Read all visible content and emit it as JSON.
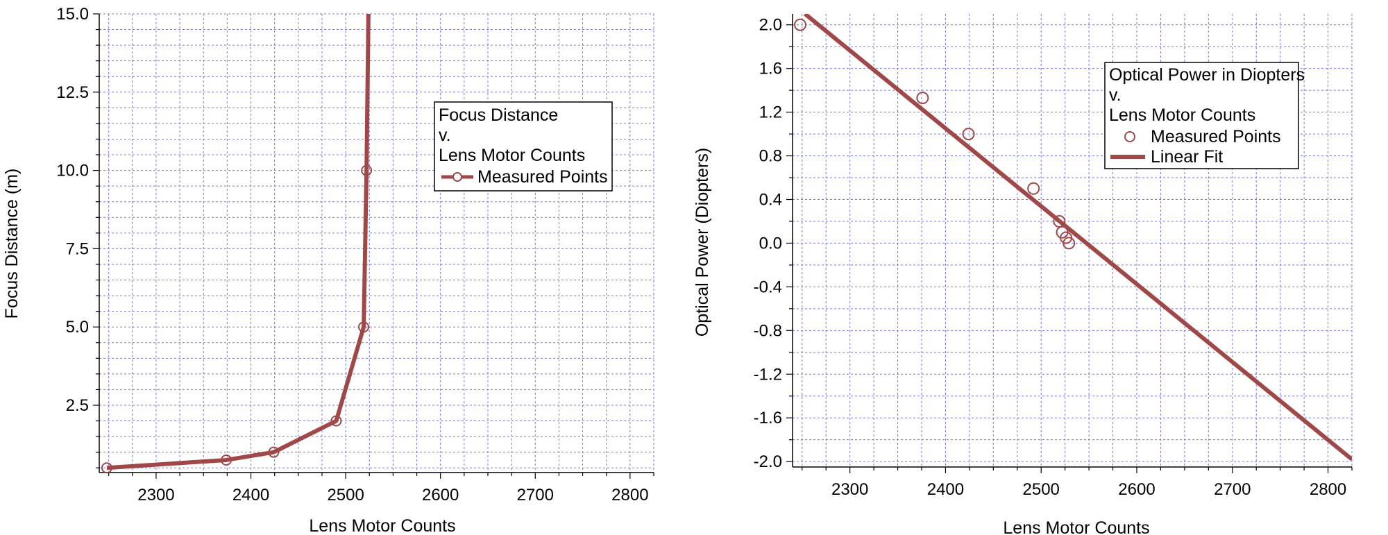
{
  "colors": {
    "series": "#A04848",
    "grid": "#7878D8",
    "axis": "#000000"
  },
  "chart_data": [
    {
      "type": "line",
      "xlabel": "Lens Motor Counts",
      "ylabel": "Focus Distance (m)",
      "xlim": [
        2240,
        2825
      ],
      "ylim": [
        0.35,
        15.0
      ],
      "xticks": [
        2300,
        2400,
        2500,
        2600,
        2700,
        2800
      ],
      "yticks": [
        2.5,
        5.0,
        7.5,
        10.0,
        12.5,
        15.0
      ],
      "legend": {
        "placement": "upper-middle",
        "lines": [
          "Focus Distance",
          "v.",
          "Lens Motor Counts"
        ],
        "entries": [
          "Measured Points"
        ]
      },
      "series": [
        {
          "name": "Measured Points",
          "x": [
            2248,
            2374,
            2424,
            2490,
            2519,
            2522,
            2524
          ],
          "y": [
            0.5,
            0.75,
            1.0,
            2.0,
            5.0,
            10.0,
            15.0
          ],
          "markers": [
            true,
            true,
            true,
            true,
            true,
            true,
            false
          ]
        }
      ]
    },
    {
      "type": "scatter",
      "xlabel": "Lens Motor Counts",
      "ylabel": "Optical Power (Diopters)",
      "xlim": [
        2240,
        2825
      ],
      "ylim": [
        -2.05,
        2.1
      ],
      "xticks": [
        2300,
        2400,
        2500,
        2600,
        2700,
        2800
      ],
      "yticks": [
        2.0,
        1.6,
        1.2,
        0.8,
        0.4,
        0.0,
        -0.4,
        -0.8,
        -1.2,
        -1.6,
        -2.0
      ],
      "legend": {
        "placement": "upper-right",
        "lines": [
          "Optical Power in Diopters",
          "v.",
          "Lens Motor Counts"
        ],
        "entries": [
          "Measured Points",
          "Linear Fit"
        ]
      },
      "series": [
        {
          "name": "Measured Points",
          "x": [
            2248,
            2376,
            2424,
            2492,
            2519,
            2522,
            2526,
            2529
          ],
          "y": [
            2.0,
            1.33,
            1.0,
            0.5,
            0.2,
            0.1,
            0.05,
            0.0
          ]
        },
        {
          "name": "Linear Fit",
          "x": [
            2253,
            2825
          ],
          "y": [
            2.1,
            -1.98
          ]
        }
      ]
    }
  ]
}
